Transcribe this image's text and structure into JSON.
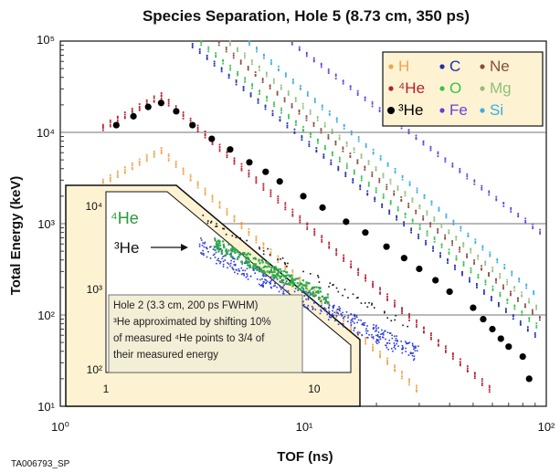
{
  "footer_id": "TA006793_SP",
  "chart_data": {
    "type": "scatter",
    "title": "Species Separation, Hole 5 (8.73 cm, 350 ps)",
    "xlabel": "TOF (ns)",
    "ylabel": "Total Energy (keV)",
    "xscale": "log",
    "yscale": "log",
    "xlim": [
      1,
      100
    ],
    "ylim": [
      10,
      100000
    ],
    "xticks": [
      "10⁰",
      "10¹",
      "10²"
    ],
    "yticks": [
      "10¹",
      "10²",
      "10³",
      "10⁴",
      "10⁵"
    ],
    "grid_y": [
      100,
      1000,
      10000
    ],
    "legend_position": "top-right",
    "series": [
      {
        "name": "H",
        "color": "#f2a24a",
        "marker": "dot-band",
        "peak_tof": 2.6,
        "peak_energy": 6500,
        "end_tof": 30,
        "end_energy": 15
      },
      {
        "name": "⁴He",
        "color": "#b3202f",
        "marker": "dot-band",
        "peak_tof": 2.6,
        "peak_energy": 26000,
        "end_tof": 60,
        "end_energy": 15
      },
      {
        "name": "³He",
        "color": "#000000",
        "marker": "large-dot",
        "points": [
          [
            1.7,
            12000
          ],
          [
            2.0,
            15000
          ],
          [
            2.3,
            19000
          ],
          [
            2.6,
            21000
          ],
          [
            3.0,
            17000
          ],
          [
            3.5,
            12000
          ],
          [
            4.2,
            8500
          ],
          [
            5.0,
            6500
          ],
          [
            6.0,
            4700
          ],
          [
            7.0,
            3700
          ],
          [
            8.0,
            2900
          ],
          [
            10,
            2000
          ],
          [
            12,
            1500
          ],
          [
            15,
            1050
          ],
          [
            18,
            800
          ],
          [
            22,
            560
          ],
          [
            26,
            420
          ],
          [
            30,
            320
          ],
          [
            35,
            240
          ],
          [
            40,
            180
          ],
          [
            50,
            120
          ],
          [
            55,
            90
          ],
          [
            60,
            70
          ],
          [
            65,
            55
          ],
          [
            70,
            45
          ],
          [
            80,
            35
          ],
          [
            85,
            20
          ]
        ]
      },
      {
        "name": "C",
        "color": "#1f2db0",
        "marker": "dot-band",
        "start_tof": 3.5,
        "start_energy": 90000,
        "end_tof": 90,
        "end_energy": 60
      },
      {
        "name": "O",
        "color": "#34c24a",
        "marker": "dot-band",
        "start_tof": 3.8,
        "start_energy": 95000,
        "end_tof": 95,
        "end_energy": 70
      },
      {
        "name": "Ne",
        "color": "#8a4b3a",
        "marker": "dot-band",
        "start_tof": 4.5,
        "start_energy": 95000,
        "end_tof": 95,
        "end_energy": 90
      },
      {
        "name": "Mg",
        "color": "#8fc07a",
        "marker": "dot-band",
        "start_tof": 5.0,
        "start_energy": 95000,
        "end_tof": 95,
        "end_energy": 110
      },
      {
        "name": "Fe",
        "color": "#6a3ee0",
        "marker": "dot-band",
        "start_tof": 9.0,
        "start_energy": 95000,
        "end_tof": 95,
        "end_energy": 800
      },
      {
        "name": "Si",
        "color": "#3aaee0",
        "marker": "dot-band",
        "start_tof": 6.0,
        "start_energy": 95000,
        "end_tof": 95,
        "end_energy": 150
      }
    ],
    "inset": {
      "xlim": [
        1,
        15
      ],
      "ylim": [
        100,
        15000
      ],
      "xticks": [
        "1",
        "10"
      ],
      "yticks": [
        "10⁴",
        "10³",
        "10²"
      ],
      "labels": [
        "⁴He",
        "³He"
      ],
      "note": [
        "Hole 2 (3.3 cm, 200 ps FWHM)",
        "³He approximated by shifting 10%",
        "of measured ⁴He points to 3/4 of",
        "their measured energy"
      ]
    }
  }
}
